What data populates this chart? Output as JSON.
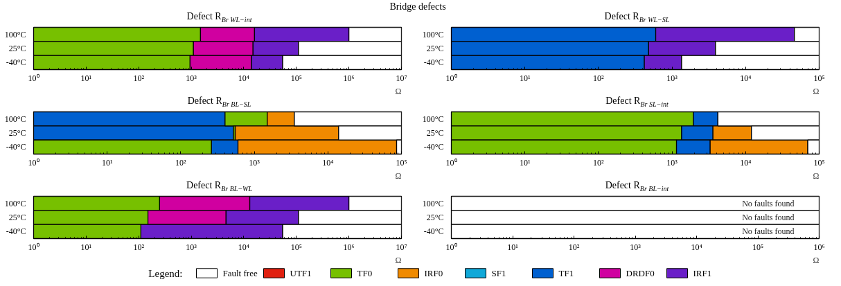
{
  "chart_data": [
    {
      "type": "bar",
      "orientation": "horizontal",
      "log": "x",
      "title": "Defect R$_{Br WL−int}$",
      "annotations": [
        "Bridge defects"
      ],
      "categories": [
        "100°C",
        "25°C",
        "-40°C"
      ],
      "xlim": [
        1,
        10000000
      ],
      "xticks": [
        {
          "value": 1,
          "label": "10⁰"
        },
        {
          "value": 10,
          "label": "10¹"
        },
        {
          "value": 100,
          "label": "10²"
        },
        {
          "value": 1000,
          "label": "10³"
        },
        {
          "value": 10000,
          "label": "10⁴"
        },
        {
          "value": 100000,
          "label": "10⁵"
        },
        {
          "value": 1000000,
          "label": "10⁶"
        },
        {
          "value": 10000000,
          "label": "10⁷"
        }
      ],
      "xlabel": "Ω",
      "series": [
        {
          "color": "#77c000",
          "base": [
            1,
            1,
            1
          ],
          "values": [
            1500,
            1100,
            950
          ]
        },
        {
          "color": "#d000a0",
          "base": [
            1500,
            1100,
            950
          ],
          "values": [
            14500,
            13900,
            13050
          ]
        },
        {
          "color": "#6a1fc8",
          "base": [
            16000,
            15000,
            14000
          ],
          "values": [
            984000,
            95000,
            41000
          ]
        },
        {
          "color": "#ffffff",
          "base": [
            1000000,
            110000,
            55000
          ],
          "values": [
            9000000,
            9890000,
            9945000
          ]
        }
      ]
    },
    {
      "type": "bar",
      "orientation": "horizontal",
      "log": "x",
      "title": "Defect R$_{Br WL−SL}$",
      "categories": [
        "100°C",
        "25°C",
        "-40°C"
      ],
      "xlim": [
        1,
        100000
      ],
      "xticks": [
        {
          "value": 1,
          "label": "10⁰"
        },
        {
          "value": 10,
          "label": "10¹"
        },
        {
          "value": 100,
          "label": "10²"
        },
        {
          "value": 1000,
          "label": "10³"
        },
        {
          "value": 10000,
          "label": "10⁴"
        },
        {
          "value": 100000,
          "label": "10⁵"
        }
      ],
      "xlabel": "Ω",
      "series": [
        {
          "color": "#0060d0",
          "base": [
            1,
            1,
            1
          ],
          "values": [
            600,
            480,
            420
          ]
        },
        {
          "color": "#6a1fc8",
          "base": [
            600,
            480,
            420
          ],
          "values": [
            45400,
            3420,
            930
          ]
        },
        {
          "color": "#ffffff",
          "base": [
            46000,
            3900,
            1350
          ],
          "values": [
            54000,
            96100,
            98650
          ]
        }
      ]
    },
    {
      "type": "bar",
      "orientation": "horizontal",
      "log": "x",
      "title": "Defect R$_{Br BL−SL}$",
      "categories": [
        "100°C",
        "25°C",
        "-40°C"
      ],
      "xlim": [
        1,
        100000
      ],
      "xticks": [
        {
          "value": 1,
          "label": "10⁰"
        },
        {
          "value": 10,
          "label": "10¹"
        },
        {
          "value": 100,
          "label": "10²"
        },
        {
          "value": 1000,
          "label": "10³"
        },
        {
          "value": 10000,
          "label": "10⁴"
        },
        {
          "value": 100000,
          "label": "10⁵"
        }
      ],
      "xlabel": "Ω",
      "series": [
        {
          "color": "#0060d0",
          "base": [
            1,
            1,
            260
          ],
          "values": [
            400,
            520,
            340
          ]
        },
        {
          "color": "#77c000",
          "base": [
            400,
            520,
            1
          ],
          "values": [
            1100,
            30,
            260
          ]
        },
        {
          "color": "#f08a00",
          "base": [
            1500,
            550,
            600
          ],
          "values": [
            2000,
            13450,
            85400
          ]
        },
        {
          "color": "#ffffff",
          "base": [
            3500,
            14000,
            86000
          ],
          "values": [
            96500,
            86000,
            14000
          ]
        }
      ]
    },
    {
      "type": "bar",
      "orientation": "horizontal",
      "log": "x",
      "title": "Defect R$_{Br SL−int}$",
      "categories": [
        "100°C",
        "25°C",
        "-40°C"
      ],
      "xlim": [
        1,
        100000
      ],
      "xticks": [
        {
          "value": 1,
          "label": "10⁰"
        },
        {
          "value": 10,
          "label": "10¹"
        },
        {
          "value": 100,
          "label": "10²"
        },
        {
          "value": 1000,
          "label": "10³"
        },
        {
          "value": 10000,
          "label": "10⁴"
        },
        {
          "value": 100000,
          "label": "10⁵"
        }
      ],
      "xlabel": "Ω",
      "series": [
        {
          "color": "#77c000",
          "base": [
            1,
            1,
            1
          ],
          "values": [
            1950,
            1350,
            1150
          ]
        },
        {
          "color": "#0060d0",
          "base": [
            1950,
            1350,
            1150
          ],
          "values": [
            2250,
            2250,
            2150
          ]
        },
        {
          "color": "#f08a00",
          "base": [
            null,
            3600,
            3300
          ],
          "values": [
            null,
            8400,
            66700
          ]
        },
        {
          "color": "#ffffff",
          "base": [
            4200,
            12000,
            70000
          ],
          "values": [
            95800,
            88000,
            30000
          ]
        }
      ]
    },
    {
      "type": "bar",
      "orientation": "horizontal",
      "log": "x",
      "title": "Defect R$_{Br BL−WL}$",
      "categories": [
        "100°C",
        "25°C",
        "-40°C"
      ],
      "xlim": [
        1,
        10000000
      ],
      "xticks": [
        {
          "value": 1,
          "label": "10⁰"
        },
        {
          "value": 10,
          "label": "10¹"
        },
        {
          "value": 100,
          "label": "10²"
        },
        {
          "value": 1000,
          "label": "10³"
        },
        {
          "value": 10000,
          "label": "10⁴"
        },
        {
          "value": 100000,
          "label": "10⁵"
        },
        {
          "value": 1000000,
          "label": "10⁶"
        },
        {
          "value": 10000000,
          "label": "10⁷"
        }
      ],
      "xlabel": "Ω",
      "series": [
        {
          "color": "#77c000",
          "base": [
            1,
            1,
            1
          ],
          "values": [
            250,
            150,
            110
          ]
        },
        {
          "color": "#d000a0",
          "base": [
            250,
            150,
            null
          ],
          "values": [
            12750,
            4450,
            null
          ]
        },
        {
          "color": "#6a1fc8",
          "base": [
            13000,
            4600,
            110
          ],
          "values": [
            987000,
            105400,
            54890
          ]
        },
        {
          "color": "#ffffff",
          "base": [
            1000000,
            110000,
            55000
          ],
          "values": [
            9000000,
            9890000,
            9945000
          ]
        }
      ]
    },
    {
      "type": "bar",
      "orientation": "horizontal",
      "log": "x",
      "title": "Defect R$_{Br BL−int}$",
      "categories": [
        "100°C",
        "25°C",
        "-40°C"
      ],
      "xlim": [
        1,
        1000000
      ],
      "xticks": [
        {
          "value": 1,
          "label": "10⁰"
        },
        {
          "value": 10,
          "label": "10¹"
        },
        {
          "value": 100,
          "label": "10²"
        },
        {
          "value": 1000,
          "label": "10³"
        },
        {
          "value": 10000,
          "label": "10⁴"
        },
        {
          "value": 100000,
          "label": "10⁵"
        },
        {
          "value": 1000000,
          "label": "10⁶"
        }
      ],
      "xlabel": "Ω",
      "legend": "bottom",
      "legend_title": "Legend:",
      "annotations": [
        {
          "text": "No faults found",
          "y": "100°C"
        },
        {
          "text": "No faults found",
          "y": "25°C"
        },
        {
          "text": "No faults found",
          "y": "-40°C"
        }
      ],
      "series": [
        {
          "name": "Fault free",
          "color": "#ffffff",
          "base": [
            1,
            1,
            1
          ],
          "values": [
            999999,
            999999,
            999999
          ]
        },
        {
          "name": "UTF1",
          "color": "#e02010",
          "base": [
            null,
            null,
            null
          ],
          "values": [
            null,
            null,
            null
          ]
        },
        {
          "name": "TF0",
          "color": "#77c000",
          "base": [
            null,
            null,
            null
          ],
          "values": [
            null,
            null,
            null
          ]
        },
        {
          "name": "IRF0",
          "color": "#f08a00",
          "base": [
            null,
            null,
            null
          ],
          "values": [
            null,
            null,
            null
          ]
        },
        {
          "name": "SF1",
          "color": "#10a8d8",
          "base": [
            null,
            null,
            null
          ],
          "values": [
            null,
            null,
            null
          ]
        },
        {
          "name": "TF1",
          "color": "#0060d0",
          "base": [
            null,
            null,
            null
          ],
          "values": [
            null,
            null,
            null
          ]
        },
        {
          "name": "DRDF0",
          "color": "#d000a0",
          "base": [
            null,
            null,
            null
          ],
          "values": [
            null,
            null,
            null
          ]
        },
        {
          "name": "IRF1",
          "color": "#6a1fc8",
          "base": [
            null,
            null,
            null
          ],
          "values": [
            null,
            null,
            null
          ]
        }
      ]
    }
  ]
}
